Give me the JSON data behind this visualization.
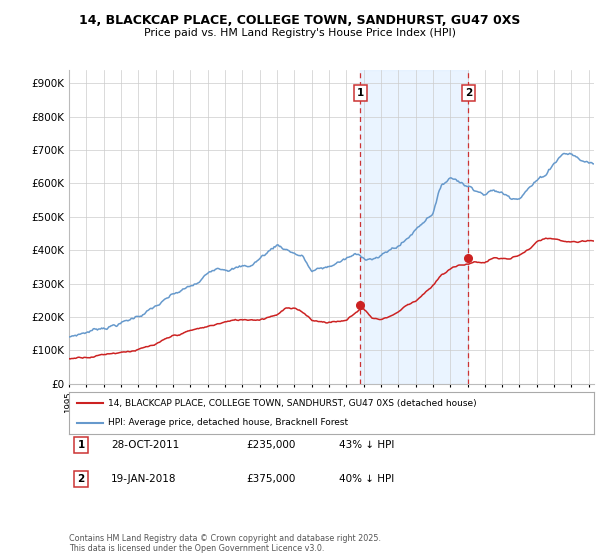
{
  "title": "14, BLACKCAP PLACE, COLLEGE TOWN, SANDHURST, GU47 0XS",
  "subtitle": "Price paid vs. HM Land Registry's House Price Index (HPI)",
  "hpi_color": "#6699cc",
  "price_color": "#cc2222",
  "sale1_date": "28-OCT-2011",
  "sale1_price_val": 235000,
  "sale1_price": "£235,000",
  "sale1_hpi": "43% ↓ HPI",
  "sale1_year": 2011.8,
  "sale2_date": "19-JAN-2018",
  "sale2_price_val": 375000,
  "sale2_price": "£375,000",
  "sale2_hpi": "40% ↓ HPI",
  "sale2_year": 2018.05,
  "legend1": "14, BLACKCAP PLACE, COLLEGE TOWN, SANDHURST, GU47 0XS (detached house)",
  "legend2": "HPI: Average price, detached house, Bracknell Forest",
  "footer": "Contains HM Land Registry data © Crown copyright and database right 2025.\nThis data is licensed under the Open Government Licence v3.0.",
  "ylim": [
    0,
    940000
  ],
  "yticks": [
    0,
    100000,
    200000,
    300000,
    400000,
    500000,
    600000,
    700000,
    800000,
    900000
  ],
  "background_color": "#ffffff",
  "grid_color": "#cccccc",
  "shade_color": "#ddeeff",
  "xlim_start": 1995,
  "xlim_end": 2025.3
}
